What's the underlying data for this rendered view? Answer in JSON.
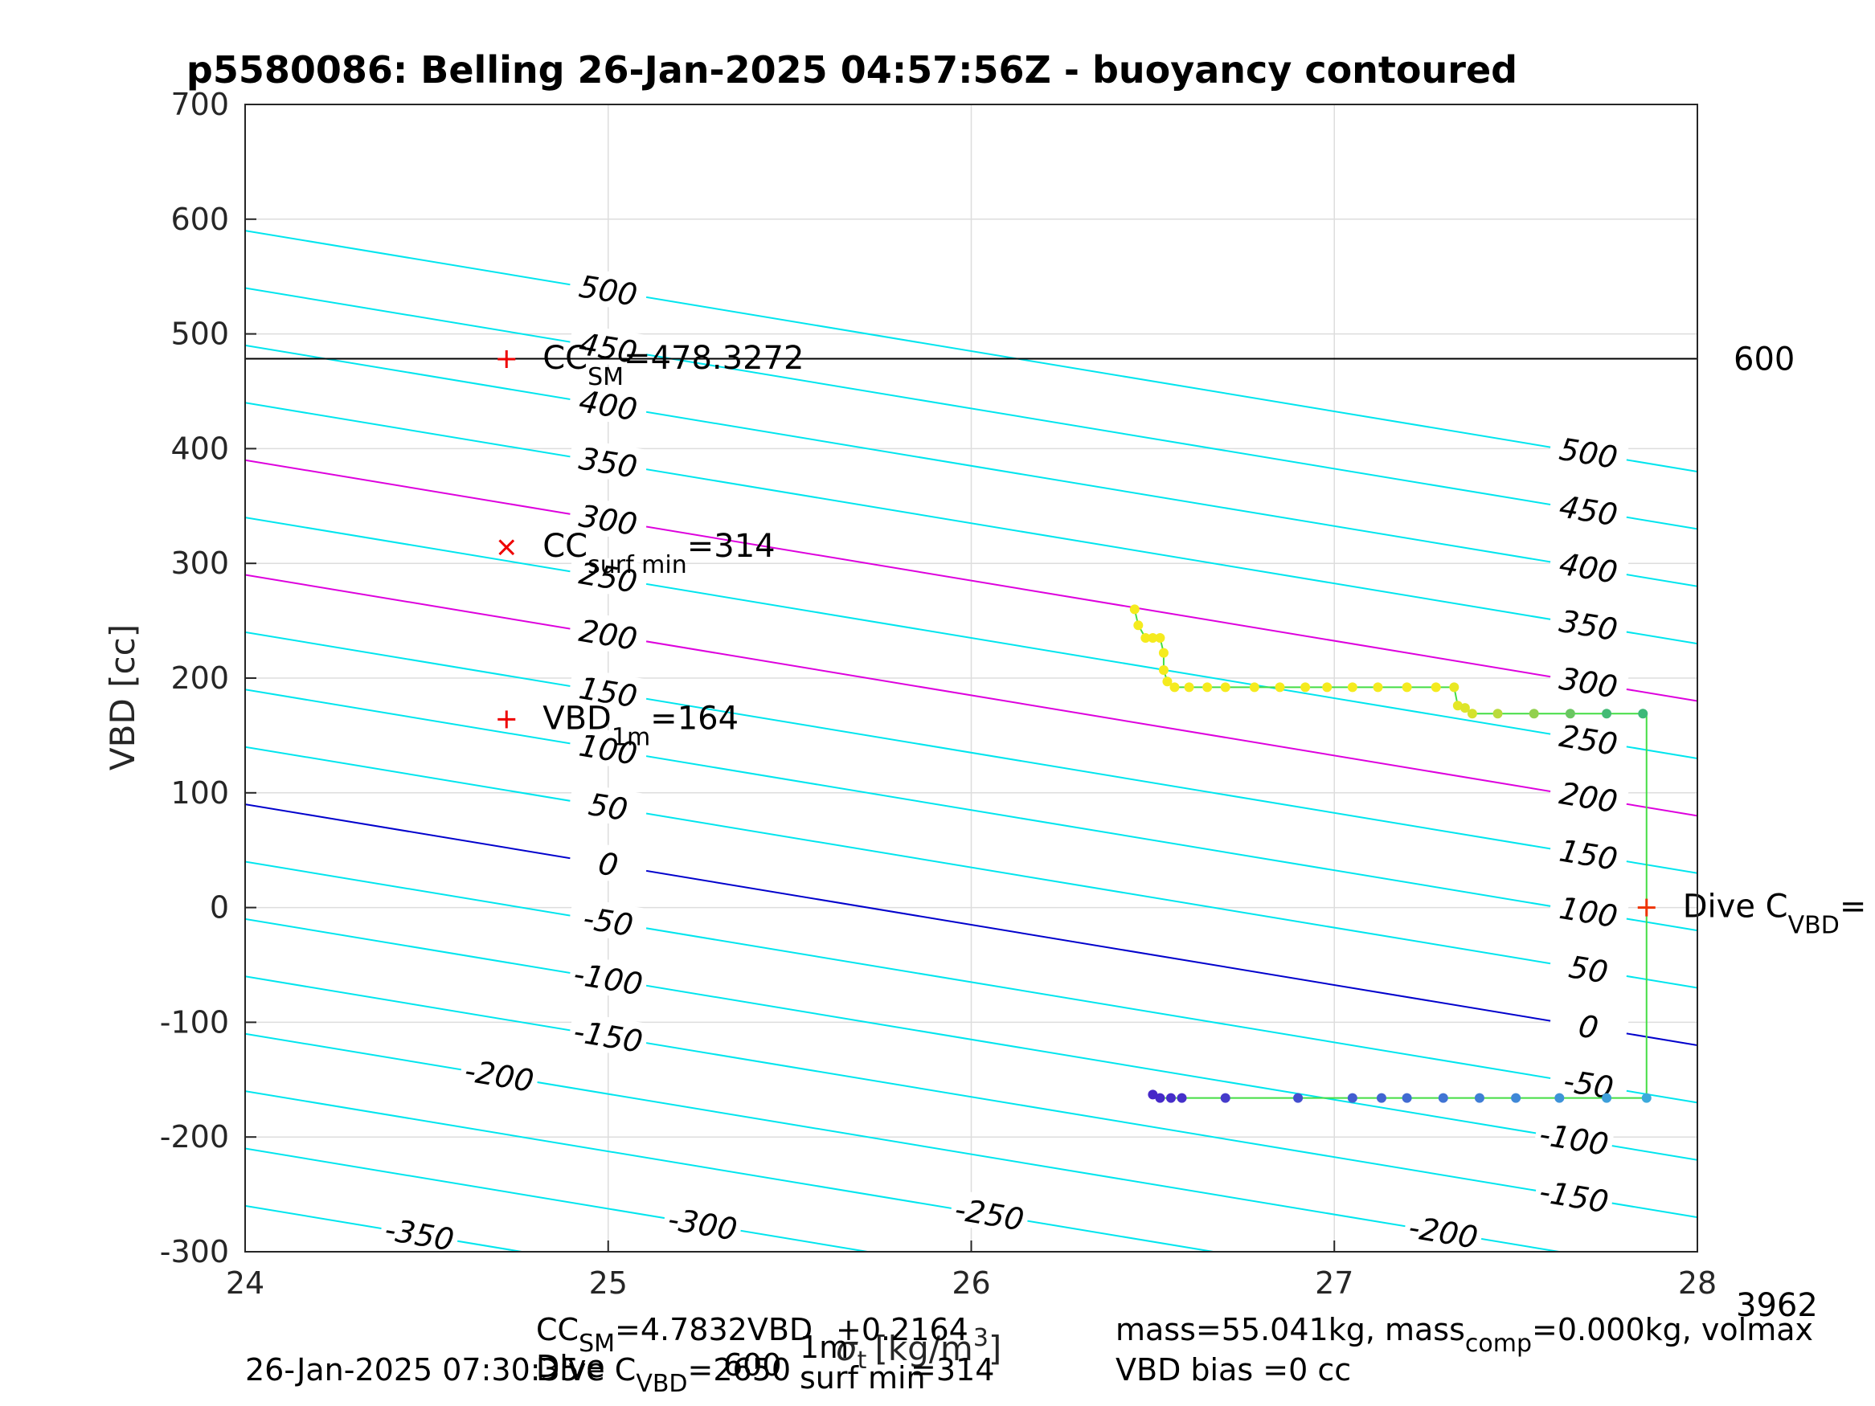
{
  "chart_data": {
    "type": "scatter",
    "title": "p5580086: Belling 26-Jan-2025 04:57:56Z - buoyancy contoured",
    "xlabel_prefix": "",
    "xlabel_main": "σ",
    "xlabel_sub": "t",
    "xlabel_unit": "[kg/m",
    "xlabel_sup": "3",
    "xlabel_close": "]",
    "ylabel": "VBD [cc]",
    "xlim": [
      24,
      28
    ],
    "ylim": [
      -300,
      700
    ],
    "grid": true,
    "xticks": [
      "24",
      "25",
      "26",
      "27",
      "28"
    ],
    "yticks": [
      "-300",
      "-200",
      "-100",
      "0",
      "100",
      "200",
      "300",
      "400",
      "500",
      "600",
      "700"
    ],
    "contour_slope": -52.5,
    "contour_levels": [
      -350,
      -300,
      -250,
      -200,
      -150,
      -100,
      -50,
      0,
      50,
      100,
      150,
      200,
      250,
      300,
      350,
      400,
      450,
      500
    ],
    "contour_levels_highlighted": {
      "0": "#0000cc",
      "200": "#dd00dd",
      "300": "#dd00dd"
    },
    "contour_labels_left": [
      {
        "text": "500",
        "x": 25.0
      },
      {
        "text": "450",
        "x": 25.0
      },
      {
        "text": "400",
        "x": 25.0
      },
      {
        "text": "350",
        "x": 25.0
      },
      {
        "text": "300",
        "x": 25.0
      },
      {
        "text": "250",
        "x": 25.0
      },
      {
        "text": "200",
        "x": 25.0
      },
      {
        "text": "150",
        "x": 25.0
      },
      {
        "text": "100",
        "x": 25.0
      },
      {
        "text": "50",
        "x": 25.0
      },
      {
        "text": "0",
        "x": 25.0
      },
      {
        "text": "-50",
        "x": 25.0
      },
      {
        "text": "-100",
        "x": 25.0
      },
      {
        "text": "-150",
        "x": 25.0
      },
      {
        "text": "-200",
        "x": 24.7
      },
      {
        "text": "-250",
        "x": 26.05
      },
      {
        "text": "-300",
        "x": 25.26
      },
      {
        "text": "-350",
        "x": 24.48
      }
    ],
    "contour_labels_right": [
      {
        "text": "500",
        "x": 27.7
      },
      {
        "text": "450",
        "x": 27.7
      },
      {
        "text": "400",
        "x": 27.7
      },
      {
        "text": "350",
        "x": 27.7
      },
      {
        "text": "300",
        "x": 27.7
      },
      {
        "text": "250",
        "x": 27.7
      },
      {
        "text": "200",
        "x": 27.7
      },
      {
        "text": "150",
        "x": 27.7
      },
      {
        "text": "100",
        "x": 27.7
      },
      {
        "text": "50",
        "x": 27.7
      },
      {
        "text": "0",
        "x": 27.7
      },
      {
        "text": "-50",
        "x": 27.7
      },
      {
        "text": "-100",
        "x": 27.66
      },
      {
        "text": "-150",
        "x": 27.66
      },
      {
        "text": "-200",
        "x": 27.3
      }
    ],
    "hline": {
      "y": 478.3272,
      "label": "600"
    },
    "vertical_line_x": 27.86,
    "descent_points": [
      {
        "x": 26.45,
        "y": 260
      },
      {
        "x": 26.46,
        "y": 246
      },
      {
        "x": 26.48,
        "y": 235
      },
      {
        "x": 26.5,
        "y": 235
      },
      {
        "x": 26.52,
        "y": 235
      },
      {
        "x": 26.53,
        "y": 222
      },
      {
        "x": 26.53,
        "y": 207
      },
      {
        "x": 26.54,
        "y": 197
      },
      {
        "x": 26.56,
        "y": 192
      },
      {
        "x": 26.6,
        "y": 192
      },
      {
        "x": 26.65,
        "y": 192
      },
      {
        "x": 26.7,
        "y": 192
      },
      {
        "x": 26.78,
        "y": 192
      },
      {
        "x": 26.85,
        "y": 192
      },
      {
        "x": 26.92,
        "y": 192
      },
      {
        "x": 26.98,
        "y": 192
      },
      {
        "x": 27.05,
        "y": 192
      },
      {
        "x": 27.12,
        "y": 192
      },
      {
        "x": 27.2,
        "y": 192
      },
      {
        "x": 27.28,
        "y": 192
      },
      {
        "x": 27.33,
        "y": 192
      },
      {
        "x": 27.34,
        "y": 176
      },
      {
        "x": 27.36,
        "y": 174
      },
      {
        "x": 27.38,
        "y": 169
      },
      {
        "x": 27.45,
        "y": 169
      },
      {
        "x": 27.55,
        "y": 169
      },
      {
        "x": 27.65,
        "y": 169
      },
      {
        "x": 27.75,
        "y": 169
      },
      {
        "x": 27.85,
        "y": 169
      }
    ],
    "ascent_points": [
      {
        "x": 27.86,
        "y": -166
      },
      {
        "x": 27.75,
        "y": -166
      },
      {
        "x": 27.62,
        "y": -166
      },
      {
        "x": 27.5,
        "y": -166
      },
      {
        "x": 27.4,
        "y": -166
      },
      {
        "x": 27.3,
        "y": -166
      },
      {
        "x": 27.2,
        "y": -166
      },
      {
        "x": 27.13,
        "y": -166
      },
      {
        "x": 27.05,
        "y": -166
      },
      {
        "x": 26.9,
        "y": -166
      },
      {
        "x": 26.7,
        "y": -166
      },
      {
        "x": 26.58,
        "y": -166
      },
      {
        "x": 26.55,
        "y": -166
      },
      {
        "x": 26.52,
        "y": -166
      },
      {
        "x": 26.5,
        "y": -163
      }
    ],
    "markers": [
      {
        "type": "plus",
        "x": 24.72,
        "y": 478,
        "color": "#ee0000",
        "label": "CC",
        "label_sub": "SM",
        "label_suffix": "=478.3272"
      },
      {
        "type": "x",
        "x": 24.72,
        "y": 314,
        "color": "#ee0000",
        "label": "CC",
        "label_sub": "surf min",
        "label_suffix": "=314"
      },
      {
        "type": "plus",
        "x": 24.72,
        "y": 164,
        "color": "#ee0000",
        "label": "VBD",
        "label_sub": "1m",
        "label_suffix": "=164"
      },
      {
        "type": "plus",
        "x": 27.86,
        "y": 0,
        "color": "#ee3300",
        "label": "Dive C",
        "label_sub": "VBD",
        "label_suffix": "="
      }
    ],
    "corner_label": "3962",
    "footer": {
      "line1_left_a": "CC",
      "line1_left_sub": "SM",
      "line1_left_b": "=4.7832VBD",
      "line1_left_c": "+0.2164",
      "line1_right_a": "mass=55.041kg, mass",
      "line1_right_sub": "comp",
      "line1_right_b": "=0.000kg, volmax",
      "line2_timestamp": "26-Jan-2025 07:30:35",
      "line2_a": "Dive C",
      "line2_sub": "VBD",
      "line2_b": "=2650",
      "line2_c": "=314",
      "line2_sub2": "surf min",
      "line2_right": "VBD bias =0 cc",
      "over_a": "Dive",
      "over_b": "1m",
      "over_c": "600"
    }
  }
}
